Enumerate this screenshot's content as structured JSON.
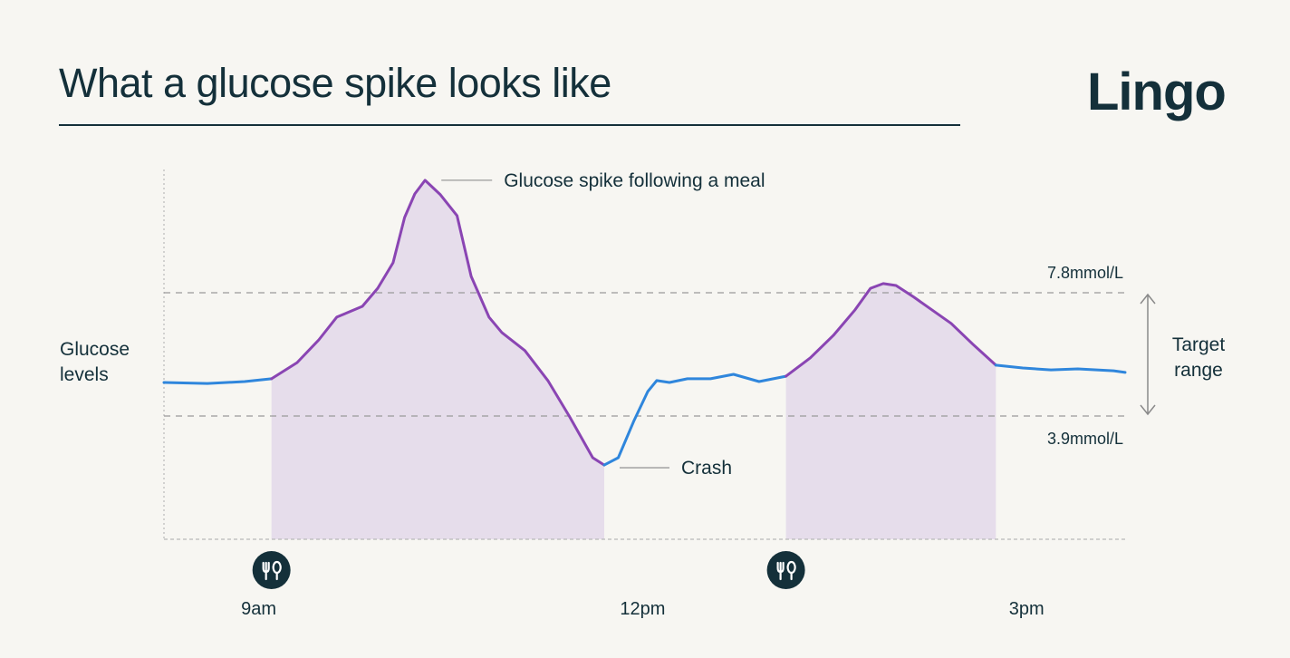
{
  "header": {
    "title": "What a glucose spike looks like",
    "logo": "Lingo"
  },
  "chart_data": {
    "type": "line",
    "title": "What a glucose spike looks like",
    "ylabel": "Glucose levels",
    "x_unit": "hour of day",
    "x_ticks": [
      {
        "value": 9,
        "label": "9am"
      },
      {
        "value": 12,
        "label": "12pm"
      },
      {
        "value": 15,
        "label": "3pm"
      }
    ],
    "xlim": [
      8.26,
      15.77
    ],
    "ylim": [
      0,
      11.7
    ],
    "reference_lines": [
      {
        "value": 7.8,
        "label": "7.8mmol/L"
      },
      {
        "value": 3.9,
        "label": "3.9mmol/L"
      }
    ],
    "range_label": "Target range",
    "meal_markers": [
      9.1,
      13.12
    ],
    "meal_icon": "fork-spoon-icon",
    "colors": {
      "normal": "#2f86dc",
      "spike": "#8a45b3",
      "spike_fill": "#e6ddeb",
      "text": "#14303a",
      "icon_bg": "#14303a"
    },
    "annotations": [
      {
        "text": "Glucose spike following a meal",
        "x": 10.3,
        "y": 11.36
      },
      {
        "text": "Crash",
        "x": 11.7,
        "y": 2.35
      }
    ],
    "series": [
      {
        "kind": "normal",
        "points": [
          [
            8.26,
            4.96
          ],
          [
            8.6,
            4.93
          ],
          [
            8.89,
            4.99
          ],
          [
            9.1,
            5.08
          ]
        ]
      },
      {
        "kind": "spike",
        "points": [
          [
            9.1,
            5.08
          ],
          [
            9.3,
            5.59
          ],
          [
            9.47,
            6.31
          ],
          [
            9.61,
            7.03
          ],
          [
            9.81,
            7.37
          ],
          [
            9.93,
            7.94
          ],
          [
            10.05,
            8.75
          ],
          [
            10.14,
            10.18
          ],
          [
            10.22,
            10.93
          ],
          [
            10.3,
            11.36
          ],
          [
            10.42,
            10.9
          ],
          [
            10.55,
            10.24
          ],
          [
            10.66,
            8.32
          ],
          [
            10.8,
            7.03
          ],
          [
            10.9,
            6.54
          ],
          [
            11.08,
            5.97
          ],
          [
            11.26,
            5.02
          ],
          [
            11.43,
            3.87
          ],
          [
            11.61,
            2.58
          ],
          [
            11.7,
            2.35
          ]
        ]
      },
      {
        "kind": "normal",
        "points": [
          [
            11.7,
            2.35
          ],
          [
            11.81,
            2.58
          ],
          [
            11.93,
            3.73
          ],
          [
            12.04,
            4.67
          ],
          [
            12.11,
            5.02
          ],
          [
            12.21,
            4.96
          ],
          [
            12.35,
            5.08
          ],
          [
            12.53,
            5.08
          ],
          [
            12.71,
            5.22
          ],
          [
            12.91,
            4.99
          ],
          [
            13.12,
            5.16
          ]
        ]
      },
      {
        "kind": "spike",
        "points": [
          [
            13.12,
            5.16
          ],
          [
            13.31,
            5.74
          ],
          [
            13.49,
            6.45
          ],
          [
            13.66,
            7.26
          ],
          [
            13.78,
            7.94
          ],
          [
            13.88,
            8.09
          ],
          [
            13.98,
            8.03
          ],
          [
            14.12,
            7.66
          ],
          [
            14.41,
            6.83
          ],
          [
            14.58,
            6.17
          ],
          [
            14.76,
            5.51
          ]
        ]
      },
      {
        "kind": "normal",
        "points": [
          [
            14.76,
            5.51
          ],
          [
            14.97,
            5.42
          ],
          [
            15.19,
            5.36
          ],
          [
            15.4,
            5.39
          ],
          [
            15.68,
            5.33
          ],
          [
            15.77,
            5.28
          ]
        ]
      }
    ]
  }
}
